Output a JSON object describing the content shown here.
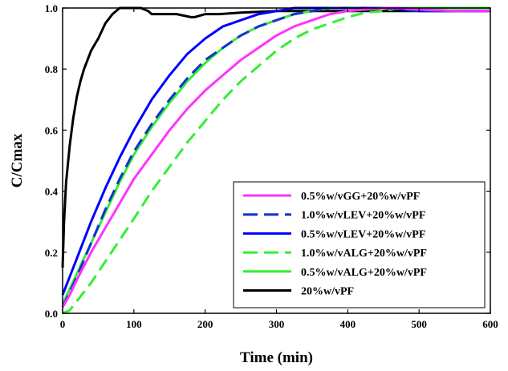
{
  "chart_data": {
    "type": "line",
    "title": "",
    "xlabel": "Time (min)",
    "ylabel": "C/Cmax",
    "xlim": [
      0,
      600
    ],
    "ylim": [
      0,
      1.0
    ],
    "x_ticks": [
      0,
      100,
      200,
      300,
      400,
      500,
      600
    ],
    "y_ticks": [
      0.0,
      0.2,
      0.4,
      0.6,
      0.8,
      1.0
    ],
    "x_tick_labels": [
      "0",
      "100",
      "200",
      "300",
      "400",
      "500",
      "600"
    ],
    "y_tick_labels": [
      "0.0",
      "0.2",
      "0.4",
      "0.6",
      "0.8",
      "1.0"
    ],
    "grid": false,
    "legend_position": "bottom-right",
    "series": [
      {
        "name": "0.5%w/vGG+20%w/vPF",
        "color": "#ff33ff",
        "dash": "solid",
        "x": [
          0,
          10,
          20,
          40,
          60,
          80,
          100,
          125,
          150,
          175,
          200,
          225,
          250,
          275,
          300,
          325,
          350,
          375,
          400,
          425,
          450,
          475,
          500,
          550,
          600
        ],
        "y": [
          0.02,
          0.06,
          0.11,
          0.2,
          0.28,
          0.36,
          0.44,
          0.52,
          0.6,
          0.67,
          0.73,
          0.78,
          0.83,
          0.87,
          0.91,
          0.94,
          0.96,
          0.98,
          0.99,
          0.995,
          1.0,
          1.0,
          0.995,
          0.99,
          0.99
        ]
      },
      {
        "name": "1.0%w/vLEV+20%w/vPF",
        "color": "#1133cc",
        "dash": "dashed",
        "x": [
          0,
          10,
          20,
          40,
          60,
          80,
          100,
          125,
          150,
          175,
          200,
          225,
          250,
          275,
          300,
          325,
          350,
          375,
          400,
          450,
          500,
          550,
          600
        ],
        "y": [
          0.02,
          0.07,
          0.12,
          0.23,
          0.34,
          0.44,
          0.53,
          0.62,
          0.7,
          0.77,
          0.83,
          0.87,
          0.91,
          0.94,
          0.96,
          0.98,
          0.99,
          1.0,
          1.0,
          1.0,
          0.99,
          0.99,
          0.99
        ]
      },
      {
        "name": "0.5%w/vLEV+20%w/vPF",
        "color": "#0000ff",
        "dash": "solid",
        "x": [
          0,
          10,
          20,
          40,
          60,
          80,
          100,
          125,
          150,
          175,
          200,
          225,
          250,
          275,
          300,
          325,
          350,
          375,
          400,
          450,
          500,
          550,
          600
        ],
        "y": [
          0.06,
          0.12,
          0.18,
          0.3,
          0.41,
          0.51,
          0.6,
          0.7,
          0.78,
          0.85,
          0.9,
          0.94,
          0.96,
          0.98,
          0.99,
          1.0,
          1.0,
          1.0,
          1.0,
          1.0,
          0.99,
          0.99,
          0.99
        ]
      },
      {
        "name": "1.0%w/vALG+20%w/vPF",
        "color": "#33ee33",
        "dash": "dashed",
        "x": [
          0,
          10,
          20,
          30,
          40,
          60,
          80,
          100,
          125,
          150,
          175,
          200,
          225,
          250,
          275,
          300,
          325,
          350,
          375,
          400,
          425,
          450,
          475,
          500,
          550,
          600
        ],
        "y": [
          0.0,
          0.01,
          0.04,
          0.07,
          0.1,
          0.17,
          0.24,
          0.31,
          0.4,
          0.48,
          0.56,
          0.63,
          0.7,
          0.76,
          0.81,
          0.86,
          0.9,
          0.93,
          0.95,
          0.97,
          0.985,
          0.99,
          1.0,
          1.0,
          1.0,
          1.0
        ]
      },
      {
        "name": "0.5%w/vALG+20%w/vPF",
        "color": "#33ee33",
        "dash": "solid",
        "x": [
          0,
          10,
          20,
          40,
          60,
          80,
          100,
          125,
          150,
          175,
          200,
          225,
          250,
          275,
          300,
          325,
          350,
          375,
          400,
          450,
          500,
          550,
          600
        ],
        "y": [
          0.03,
          0.08,
          0.13,
          0.23,
          0.33,
          0.43,
          0.52,
          0.61,
          0.69,
          0.76,
          0.82,
          0.87,
          0.91,
          0.94,
          0.96,
          0.98,
          0.99,
          1.0,
          1.0,
          1.0,
          1.0,
          1.0,
          1.0
        ]
      },
      {
        "name": "20%w/vPF",
        "color": "#000000",
        "dash": "solid",
        "x": [
          0,
          2,
          5,
          10,
          15,
          20,
          25,
          30,
          40,
          50,
          60,
          70,
          80,
          90,
          100,
          110,
          120,
          125,
          140,
          160,
          170,
          180,
          185,
          200,
          220,
          250,
          300,
          400,
          500,
          600
        ],
        "y": [
          0.15,
          0.3,
          0.43,
          0.55,
          0.64,
          0.71,
          0.76,
          0.8,
          0.86,
          0.9,
          0.95,
          0.98,
          1.0,
          1.0,
          1.0,
          1.0,
          0.99,
          0.98,
          0.98,
          0.98,
          0.975,
          0.97,
          0.97,
          0.98,
          0.98,
          0.985,
          0.99,
          0.99,
          0.99,
          0.99
        ]
      }
    ]
  }
}
